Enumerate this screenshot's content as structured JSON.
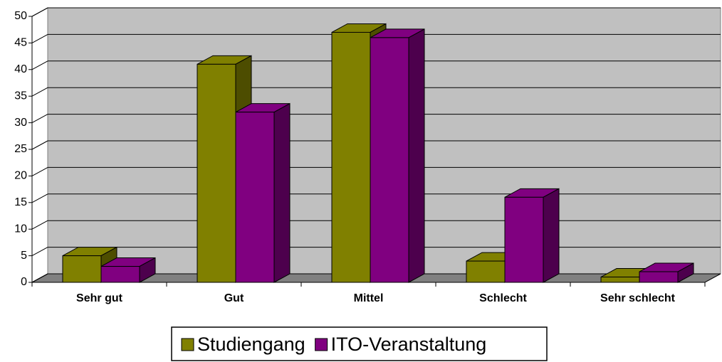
{
  "chart_data": {
    "type": "bar3d",
    "categories": [
      "Sehr gut",
      "Gut",
      "Mittel",
      "Schlecht",
      "Sehr schlecht"
    ],
    "series": [
      {
        "name": "Studiengang",
        "color": "#808000",
        "values": [
          5,
          41,
          47,
          4,
          1
        ]
      },
      {
        "name": "ITO-Veranstaltung",
        "color": "#800080",
        "values": [
          3,
          32,
          46,
          16,
          2
        ]
      }
    ],
    "ylim": [
      0,
      50
    ],
    "yticks": [
      0,
      5,
      10,
      15,
      20,
      25,
      30,
      35,
      40,
      45,
      50
    ],
    "grid": true,
    "legend": "bottom"
  }
}
